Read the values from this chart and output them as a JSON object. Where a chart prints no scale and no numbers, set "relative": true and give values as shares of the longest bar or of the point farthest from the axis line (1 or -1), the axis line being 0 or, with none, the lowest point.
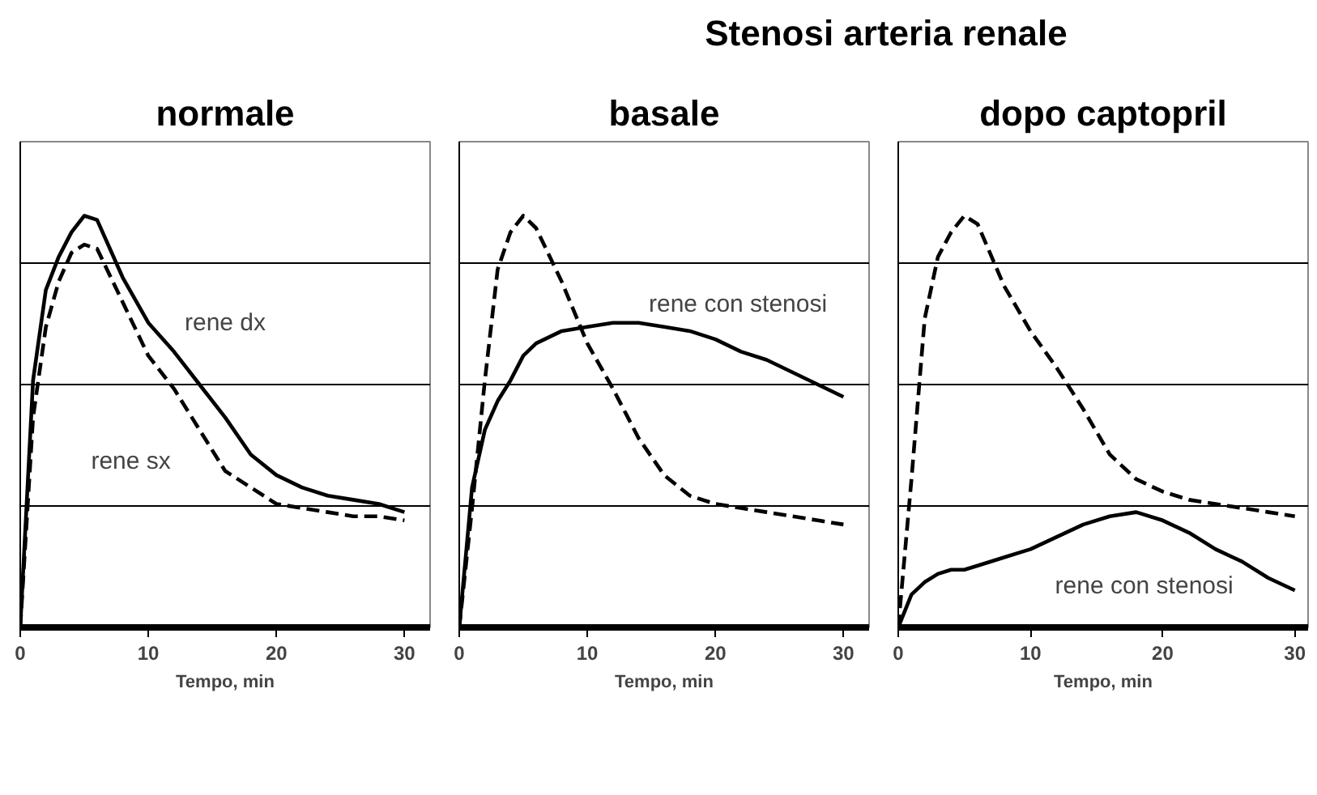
{
  "chart_data": [
    {
      "type": "line",
      "title": "normale",
      "xlabel": "Tempo, min",
      "relative": true,
      "grid": "y",
      "xlim": [
        0,
        32
      ],
      "xticks": [
        0,
        10,
        20,
        30
      ],
      "x": [
        0,
        1,
        2,
        3,
        4,
        5,
        6,
        8,
        10,
        12,
        14,
        16,
        18,
        20,
        22,
        24,
        26,
        28,
        30
      ],
      "series": [
        {
          "color": "#000000",
          "line_style": "solid",
          "values": [
            0,
            0.6,
            0.82,
            0.9,
            0.96,
            1,
            0.99,
            0.85,
            0.74,
            0.67,
            0.59,
            0.51,
            0.42,
            0.37,
            0.34,
            0.32,
            0.31,
            0.3,
            0.28
          ]
        },
        {
          "color": "#000000",
          "line_style": "dashed",
          "values": [
            0,
            0.51,
            0.73,
            0.84,
            0.91,
            0.93,
            0.92,
            0.79,
            0.66,
            0.58,
            0.48,
            0.38,
            0.34,
            0.3,
            0.29,
            0.28,
            0.27,
            0.27,
            0.26
          ]
        }
      ],
      "annotations": [
        "rene dx",
        "rene sx"
      ]
    },
    {
      "type": "line",
      "title": "basale",
      "xlabel": "Tempo, min",
      "relative": true,
      "grid": "y",
      "xlim": [
        0,
        32
      ],
      "xticks": [
        0,
        10,
        20,
        30
      ],
      "x": [
        0,
        1,
        2,
        3,
        4,
        5,
        6,
        8,
        10,
        12,
        14,
        16,
        18,
        20,
        22,
        24,
        26,
        28,
        30
      ],
      "series": [
        {
          "color": "#000000",
          "line_style": "solid",
          "values": [
            0,
            0.34,
            0.48,
            0.55,
            0.6,
            0.66,
            0.69,
            0.72,
            0.73,
            0.74,
            0.74,
            0.73,
            0.72,
            0.7,
            0.67,
            0.65,
            0.62,
            0.59,
            0.56
          ]
        },
        {
          "color": "#000000",
          "line_style": "dashed",
          "values": [
            0,
            0.29,
            0.6,
            0.87,
            0.96,
            1,
            0.97,
            0.84,
            0.69,
            0.58,
            0.46,
            0.37,
            0.32,
            0.3,
            0.29,
            0.28,
            0.27,
            0.26,
            0.25
          ]
        }
      ],
      "annotations": [
        "Stenosi arteria renale",
        "rene con stenosi"
      ]
    },
    {
      "type": "line",
      "title": "dopo captopril",
      "xlabel": "Tempo, min",
      "relative": true,
      "grid": "y",
      "xlim": [
        0,
        31
      ],
      "xticks": [
        0,
        10,
        20,
        30
      ],
      "x": [
        0,
        1,
        2,
        3,
        4,
        5,
        6,
        8,
        10,
        12,
        14,
        16,
        18,
        20,
        22,
        24,
        26,
        28,
        30
      ],
      "series": [
        {
          "color": "#000000",
          "line_style": "solid",
          "values": [
            0,
            0.08,
            0.11,
            0.13,
            0.14,
            0.14,
            0.15,
            0.17,
            0.19,
            0.22,
            0.25,
            0.27,
            0.28,
            0.26,
            0.23,
            0.19,
            0.16,
            0.12,
            0.09
          ]
        },
        {
          "color": "#000000",
          "line_style": "dashed",
          "values": [
            0,
            0.36,
            0.75,
            0.9,
            0.96,
            1,
            0.98,
            0.83,
            0.72,
            0.63,
            0.53,
            0.42,
            0.36,
            0.33,
            0.31,
            0.3,
            0.29,
            0.28,
            0.27
          ]
        }
      ],
      "annotations": [
        "rene con stenosi"
      ]
    }
  ]
}
